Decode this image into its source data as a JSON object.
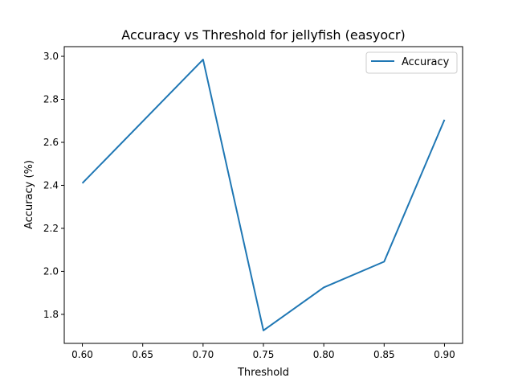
{
  "chart_data": {
    "type": "line",
    "title": "Accuracy vs Threshold for jellyfish (easyocr)",
    "xlabel": "Threshold",
    "ylabel": "Accuracy (%)",
    "x": [
      0.6,
      0.7,
      0.75,
      0.8,
      0.85,
      0.9
    ],
    "series": [
      {
        "name": "Accuracy",
        "values": [
          2.41,
          2.985,
          1.725,
          1.925,
          2.045,
          2.705
        ],
        "color": "#1f77b4"
      }
    ],
    "xlim": [
      0.585,
      0.915
    ],
    "ylim": [
      1.665,
      3.045
    ],
    "xticks": [
      0.6,
      0.65,
      0.7,
      0.75,
      0.8,
      0.85,
      0.9
    ],
    "xtick_labels": [
      "0.60",
      "0.65",
      "0.70",
      "0.75",
      "0.80",
      "0.85",
      "0.90"
    ],
    "yticks": [
      1.8,
      2.0,
      2.2,
      2.4,
      2.6,
      2.8,
      3.0
    ],
    "ytick_labels": [
      "1.8",
      "2.0",
      "2.2",
      "2.4",
      "2.6",
      "2.8",
      "3.0"
    ],
    "grid": false,
    "legend_position": "top-right"
  }
}
